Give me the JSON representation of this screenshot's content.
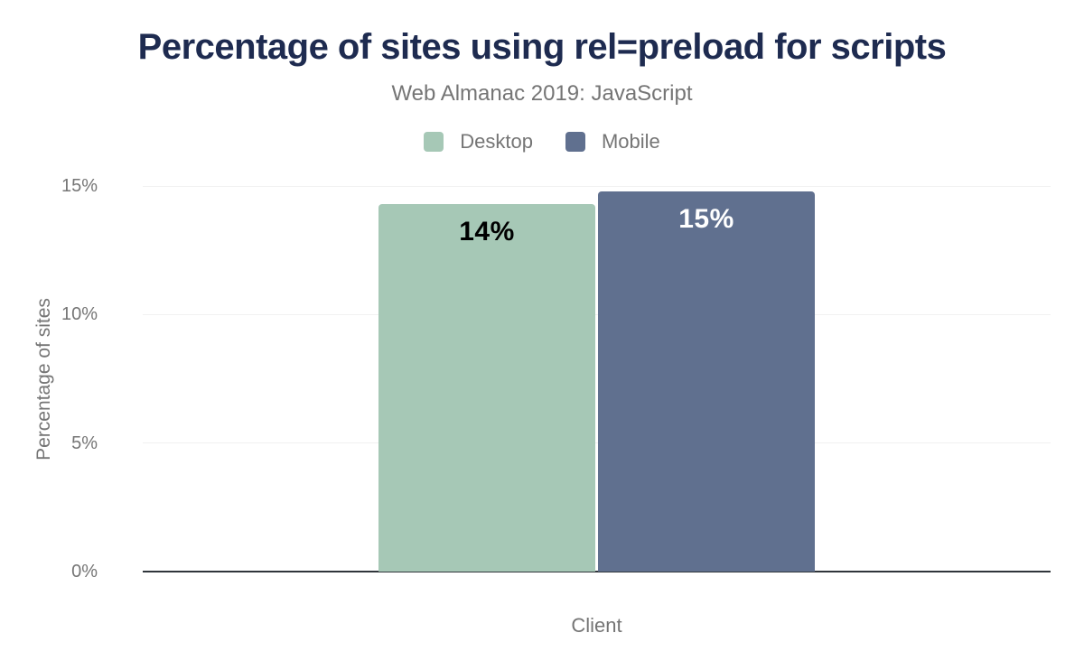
{
  "chart_data": {
    "type": "bar",
    "title": "Percentage of sites using rel=preload for scripts",
    "subtitle": "Web Almanac 2019: JavaScript",
    "xlabel": "Client",
    "ylabel": "Percentage of sites",
    "ylim": [
      0,
      15
    ],
    "yticks": [
      {
        "value": 0,
        "label": "0%"
      },
      {
        "value": 5,
        "label": "5%"
      },
      {
        "value": 10,
        "label": "10%"
      },
      {
        "value": 15,
        "label": "15%"
      }
    ],
    "grid": true,
    "legend_position": "top",
    "categories": [
      "Client"
    ],
    "series": [
      {
        "name": "Desktop",
        "values": [
          14.3
        ],
        "data_label": "14%",
        "color": "#a6c8b6",
        "data_label_color": "#000000"
      },
      {
        "name": "Mobile",
        "values": [
          14.8
        ],
        "data_label": "15%",
        "color": "#60708f",
        "data_label_color": "#ffffff"
      }
    ],
    "colors": {
      "title": "#1e2b50",
      "text_muted": "#757575",
      "gridline": "#f1f1f1",
      "axis_line": "#30353b",
      "background": "#ffffff"
    }
  }
}
